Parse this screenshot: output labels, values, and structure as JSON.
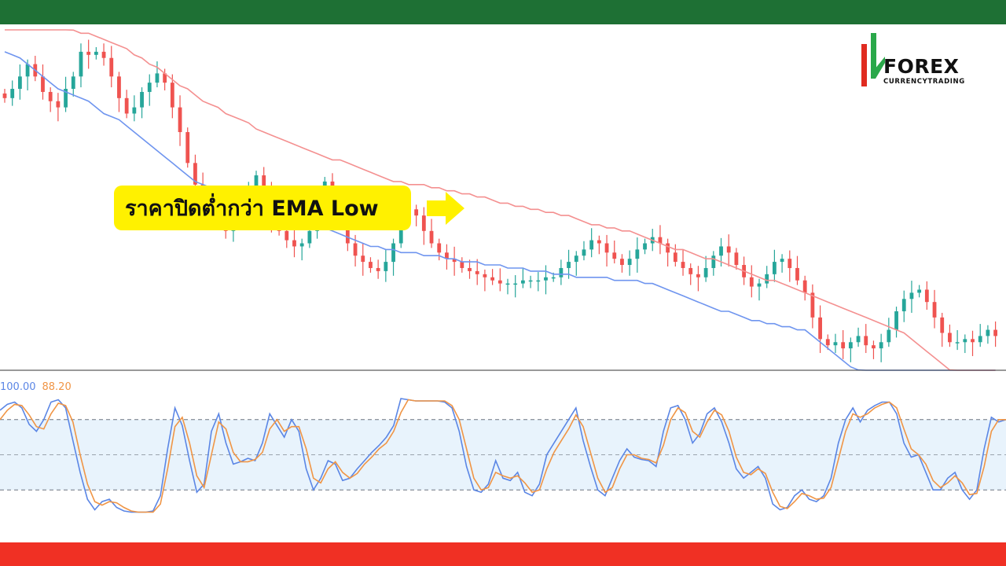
{
  "colors": {
    "top_bar": "#1e7034",
    "bottom_bar": "#f03024",
    "bull_candle": "#26a69a",
    "bear_candle": "#ef5350",
    "ema_low": "#6f95ef",
    "ema_high": "#f49090",
    "stoch_k": "#5b86e5",
    "stoch_d": "#f09545",
    "band_fill": "#e8f3fc",
    "callout_bg": "#fff100",
    "logo_green": "#2aa84a",
    "logo_red": "#e02b20"
  },
  "logo": {
    "word": "FOREX",
    "sub": "CURRENCYTRADING",
    "icon": "candlestick-logo-icon"
  },
  "callout": {
    "text": "ราคาปิดต่ำกว่า EMA Low",
    "arrow_icon": "right-arrow-icon"
  },
  "chart_data": [
    {
      "type": "candlestick",
      "title": "",
      "ylim": [
        0,
        100
      ],
      "close": [
        83,
        86,
        90,
        94,
        90,
        85,
        82,
        80,
        86,
        90,
        98,
        97,
        98,
        96,
        90,
        83,
        78,
        80,
        85,
        88,
        91,
        88,
        80,
        72,
        62,
        55,
        50,
        46,
        44,
        40,
        45,
        48,
        52,
        58,
        52,
        44,
        40,
        37,
        35,
        36,
        40,
        48,
        56,
        48,
        42,
        36,
        32,
        30,
        28,
        27,
        30,
        36,
        44,
        47,
        45,
        40,
        36,
        33,
        31,
        30,
        28,
        27,
        26,
        25,
        24,
        23,
        23,
        23,
        24,
        24,
        24,
        25,
        25,
        28,
        30,
        32,
        34,
        37,
        36,
        33,
        31,
        29,
        31,
        34,
        36,
        38,
        36,
        33,
        30,
        28,
        26,
        25,
        28,
        32,
        35,
        33,
        29,
        25,
        22,
        23,
        26,
        30,
        31,
        28,
        24,
        20,
        12,
        5,
        3,
        4,
        2,
        4,
        6,
        3,
        2,
        4,
        8,
        14,
        18,
        20,
        21,
        17,
        12,
        7,
        4,
        4,
        5,
        4,
        6,
        8,
        6
      ],
      "ema_low": [
        98,
        97,
        96,
        94,
        92,
        90,
        88,
        86,
        85,
        84,
        83,
        82,
        80,
        78,
        77,
        76,
        74,
        72,
        70,
        68,
        66,
        64,
        62,
        60,
        58,
        56,
        55,
        54,
        53,
        52,
        51,
        50,
        49,
        48,
        48,
        47,
        46,
        45,
        44,
        43,
        42,
        41,
        41,
        40,
        39,
        38,
        37,
        36,
        35,
        35,
        34,
        34,
        33,
        33,
        33,
        32,
        32,
        32,
        31,
        31,
        30,
        30,
        30,
        29,
        29,
        29,
        28,
        28,
        28,
        27,
        27,
        27,
        26,
        26,
        26,
        25,
        25,
        25,
        25,
        25,
        24,
        24,
        24,
        24,
        23,
        23,
        22,
        21,
        20,
        19,
        18,
        17,
        16,
        15,
        14,
        14,
        13,
        12,
        11,
        11,
        10,
        10,
        9,
        9,
        8,
        8,
        6,
        4,
        2,
        0,
        -2,
        -4,
        -5,
        -6,
        -7,
        -8,
        -8,
        -8,
        -8,
        -9,
        -9,
        -9,
        -10,
        -11,
        -12,
        -14,
        -15,
        -16,
        -17,
        -18,
        -20
      ],
      "ema_high": [
        114,
        113,
        112,
        111,
        110,
        109,
        108,
        107,
        106,
        105,
        104,
        104,
        103,
        102,
        101,
        100,
        99,
        97,
        96,
        94,
        93,
        91,
        89,
        87,
        86,
        84,
        82,
        81,
        80,
        78,
        77,
        76,
        75,
        73,
        72,
        71,
        70,
        69,
        68,
        67,
        66,
        65,
        64,
        63,
        63,
        62,
        61,
        60,
        59,
        58,
        57,
        56,
        56,
        55,
        55,
        55,
        54,
        54,
        53,
        53,
        52,
        52,
        51,
        51,
        50,
        49,
        49,
        48,
        48,
        47,
        47,
        46,
        46,
        45,
        45,
        44,
        43,
        42,
        42,
        41,
        41,
        40,
        40,
        39,
        38,
        37,
        36,
        35,
        34,
        34,
        33,
        32,
        31,
        31,
        30,
        29,
        28,
        27,
        26,
        25,
        24,
        24,
        23,
        22,
        21,
        20,
        19,
        18,
        17,
        16,
        15,
        14,
        13,
        12,
        11,
        10,
        9,
        8,
        7,
        5,
        3,
        1,
        -1,
        -3,
        -5,
        -7,
        -8,
        -9,
        -10,
        -11,
        -12
      ]
    },
    {
      "type": "line",
      "title": "",
      "ylim": [
        0,
        100
      ],
      "hlines": [
        20,
        50,
        80
      ],
      "series": [
        {
          "name": "100.00",
          "values": [
            88,
            93,
            95,
            90,
            76,
            70,
            80,
            95,
            97,
            90,
            62,
            35,
            12,
            3,
            10,
            12,
            5,
            2,
            1,
            1,
            1,
            2,
            15,
            55,
            90,
            75,
            45,
            18,
            25,
            70,
            85,
            60,
            42,
            44,
            47,
            45,
            60,
            85,
            75,
            65,
            80,
            70,
            38,
            20,
            30,
            45,
            42,
            28,
            30,
            38,
            45,
            52,
            58,
            65,
            75,
            98,
            97,
            96,
            96,
            96,
            96,
            95,
            90,
            70,
            40,
            20,
            18,
            25,
            45,
            30,
            28,
            35,
            18,
            15,
            25,
            50,
            60,
            70,
            80,
            90,
            62,
            40,
            20,
            15,
            30,
            45,
            55,
            48,
            46,
            45,
            40,
            70,
            90,
            92,
            80,
            60,
            68,
            85,
            90,
            78,
            60,
            38,
            30,
            35,
            40,
            30,
            8,
            3,
            5,
            15,
            20,
            12,
            10,
            15,
            30,
            60,
            80,
            90,
            78,
            88,
            92,
            95,
            95,
            85,
            60,
            48,
            50,
            35,
            20,
            20,
            30,
            35,
            20,
            12,
            20,
            55,
            82,
            78,
            80
          ]
        },
        {
          "name": "88.20",
          "values": [
            80,
            88,
            93,
            92,
            84,
            74,
            72,
            85,
            94,
            92,
            78,
            50,
            25,
            10,
            7,
            10,
            9,
            5,
            2,
            1,
            1,
            1,
            8,
            38,
            74,
            82,
            60,
            32,
            22,
            50,
            78,
            72,
            52,
            44,
            44,
            46,
            52,
            72,
            80,
            70,
            74,
            74,
            55,
            30,
            26,
            38,
            44,
            35,
            30,
            34,
            42,
            48,
            55,
            60,
            70,
            86,
            97,
            96,
            96,
            96,
            96,
            96,
            92,
            80,
            55,
            30,
            20,
            22,
            35,
            32,
            30,
            32,
            26,
            18,
            20,
            38,
            52,
            62,
            72,
            84,
            74,
            52,
            30,
            18,
            22,
            38,
            50,
            50,
            47,
            46,
            43,
            58,
            80,
            90,
            86,
            70,
            65,
            78,
            88,
            84,
            70,
            48,
            35,
            33,
            38,
            34,
            18,
            6,
            4,
            10,
            17,
            15,
            12,
            13,
            22,
            46,
            70,
            85,
            82,
            85,
            90,
            93,
            95,
            90,
            72,
            55,
            50,
            42,
            28,
            22,
            26,
            32,
            26,
            16,
            17,
            40,
            70,
            80,
            80
          ]
        }
      ]
    }
  ]
}
